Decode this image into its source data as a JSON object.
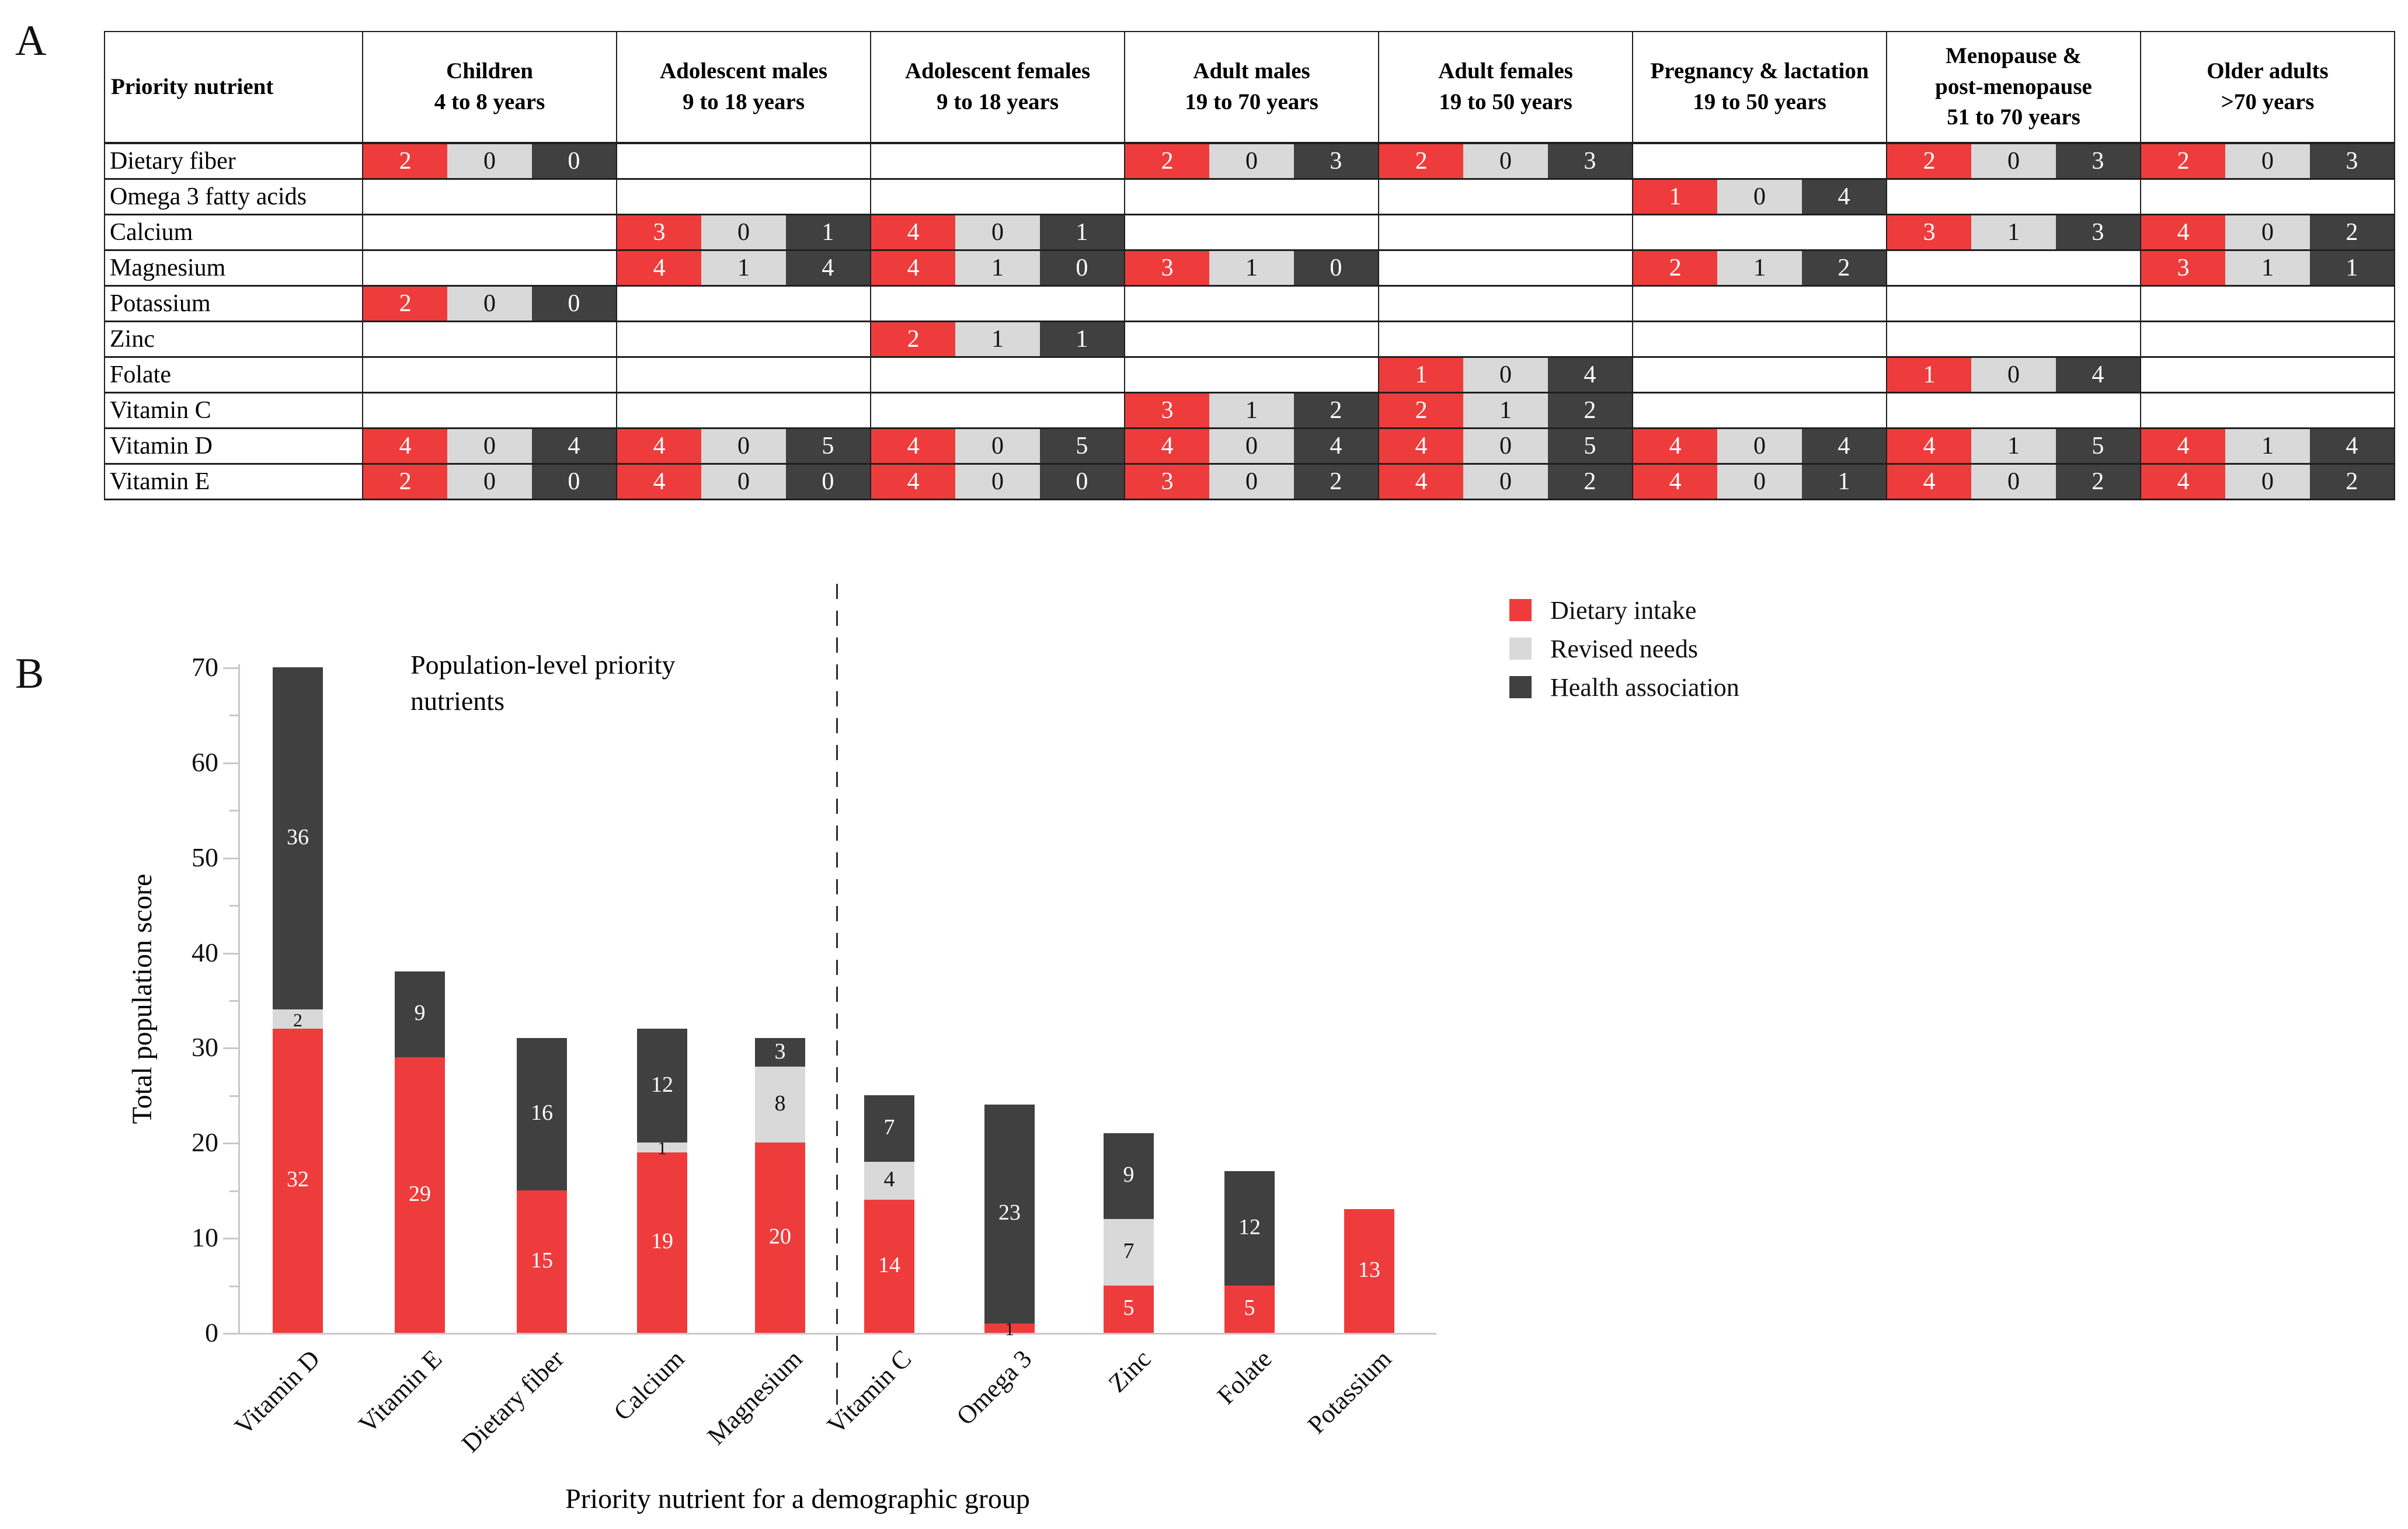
{
  "panel_a": {
    "label": "A",
    "table": {
      "header_col": "Priority nutrient",
      "columns": [
        "Children\n4 to 8 years",
        "Adolescent males\n9 to 18 years",
        "Adolescent females\n9 to 18 years",
        "Adult males\n19 to 70 years",
        "Adult females\n19 to 50 years",
        "Pregnancy & lactation\n19 to 50 years",
        "Menopause &\npost-menopause\n51 to 70 years",
        "Older adults\n>70 years"
      ],
      "cell_order": [
        "Dietary intake",
        "Revised needs",
        "Health association"
      ],
      "rows": [
        {
          "label": "Dietary fiber",
          "cells": [
            [
              2,
              0,
              0
            ],
            null,
            null,
            [
              2,
              0,
              3
            ],
            [
              2,
              0,
              3
            ],
            null,
            [
              2,
              0,
              3
            ],
            [
              2,
              0,
              3
            ]
          ]
        },
        {
          "label": "Omega 3 fatty acids",
          "cells": [
            null,
            null,
            null,
            null,
            null,
            [
              1,
              0,
              4
            ],
            null,
            null
          ]
        },
        {
          "label": "Calcium",
          "cells": [
            null,
            [
              3,
              0,
              1
            ],
            [
              4,
              0,
              1
            ],
            null,
            null,
            null,
            [
              3,
              1,
              3
            ],
            [
              4,
              0,
              2
            ]
          ]
        },
        {
          "label": "Magnesium",
          "cells": [
            null,
            [
              4,
              1,
              4
            ],
            [
              4,
              1,
              0
            ],
            [
              3,
              1,
              0
            ],
            null,
            [
              2,
              1,
              2
            ],
            null,
            [
              3,
              1,
              1
            ]
          ]
        },
        {
          "label": "Potassium",
          "cells": [
            [
              2,
              0,
              0
            ],
            null,
            null,
            null,
            null,
            null,
            null,
            null
          ]
        },
        {
          "label": "Zinc",
          "cells": [
            null,
            null,
            [
              2,
              1,
              1
            ],
            null,
            null,
            null,
            null,
            null
          ]
        },
        {
          "label": "Folate",
          "cells": [
            null,
            null,
            null,
            null,
            [
              1,
              0,
              4
            ],
            null,
            [
              1,
              0,
              4
            ],
            null
          ]
        },
        {
          "label": "Vitamin C",
          "cells": [
            null,
            null,
            null,
            [
              3,
              1,
              2
            ],
            [
              2,
              1,
              2
            ],
            null,
            null,
            null
          ]
        },
        {
          "label": "Vitamin D",
          "cells": [
            [
              4,
              0,
              4
            ],
            [
              4,
              0,
              5
            ],
            [
              4,
              0,
              5
            ],
            [
              4,
              0,
              4
            ],
            [
              4,
              0,
              5
            ],
            [
              4,
              0,
              4
            ],
            [
              4,
              1,
              5
            ],
            [
              4,
              1,
              4
            ]
          ]
        },
        {
          "label": "Vitamin E",
          "cells": [
            [
              2,
              0,
              0
            ],
            [
              4,
              0,
              0
            ],
            [
              4,
              0,
              0
            ],
            [
              3,
              0,
              2
            ],
            [
              4,
              0,
              2
            ],
            [
              4,
              0,
              1
            ],
            [
              4,
              0,
              2
            ],
            [
              4,
              0,
              2
            ]
          ]
        }
      ]
    }
  },
  "panel_b": {
    "label": "B"
  },
  "colors": {
    "dietary_intake": "#ee3c3c",
    "revised_needs": "#d9d9d9",
    "health_association": "#404040",
    "axis": "#c8c8c8"
  },
  "chart_data": {
    "type": "bar",
    "stacked": true,
    "title": "",
    "annotation": "Population-level priority\nnutrients",
    "xlabel": "Priority nutrient for a demographic group",
    "ylabel": "Total population score",
    "ylim": [
      0,
      70
    ],
    "yticks": [
      0,
      10,
      20,
      30,
      40,
      50,
      60,
      70
    ],
    "minor_yticks": [
      5,
      15,
      25,
      35,
      45,
      55,
      65
    ],
    "grid": false,
    "legend_position": "upper right",
    "divider_after_index": 4,
    "categories": [
      "Vitamin D",
      "Vitamin E",
      "Dietary fiber",
      "Calcium",
      "Magnesium",
      "Vitamin C",
      "Omega 3",
      "Zinc",
      "Folate",
      "Potassium"
    ],
    "series": [
      {
        "name": "Dietary intake",
        "color": "#ee3c3c",
        "values": [
          32,
          29,
          15,
          19,
          20,
          14,
          1,
          5,
          5,
          13
        ]
      },
      {
        "name": "Revised needs",
        "color": "#d9d9d9",
        "values": [
          2,
          0,
          0,
          1,
          8,
          4,
          0,
          7,
          0,
          0
        ]
      },
      {
        "name": "Health association",
        "color": "#404040",
        "values": [
          36,
          9,
          16,
          12,
          3,
          7,
          23,
          9,
          12,
          0
        ]
      }
    ],
    "totals": [
      70,
      38,
      31,
      32,
      31,
      25,
      24,
      21,
      17,
      13
    ]
  }
}
